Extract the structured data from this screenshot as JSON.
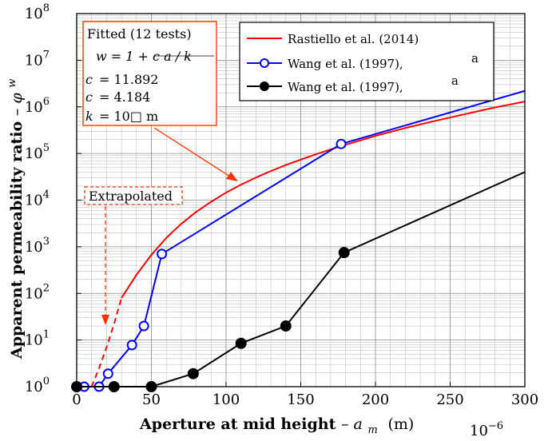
{
  "chart_data": {
    "type": "line",
    "xlabel": "Aperture at mid height",
    "xlabel_symbol": "a",
    "xlabel_sub": "m",
    "xlabel_unit": "(m)",
    "xlabel_scale": "10",
    "xlabel_scale_exp": "−6",
    "ylabel": "Apparent permeability ratio",
    "ylabel_symbol": "φ",
    "ylabel_sup": "w",
    "xlim": [
      0,
      300
    ],
    "ylim_log10": [
      0,
      8
    ],
    "y_scale": "log",
    "grid": "both",
    "x_ticks": [
      0,
      50,
      100,
      150,
      200,
      250,
      300
    ],
    "y_tick_base": "10",
    "y_tick_exponents": [
      "0",
      "1",
      "2",
      "3",
      "4",
      "5",
      "6",
      "7",
      "8"
    ],
    "legend_position": "top-right",
    "series": [
      {
        "name": "Rastiello et al. (2014)",
        "color": "#ff0000",
        "marker": "none",
        "style": "solid",
        "x": [
          30,
          40,
          50,
          60,
          70,
          80,
          90,
          100,
          110,
          120,
          130,
          140,
          150,
          160,
          170,
          180,
          190,
          200,
          220,
          240,
          260,
          280,
          300
        ],
        "y": [
          80,
          250,
          670,
          1550,
          3100,
          5600,
          9200,
          14500,
          21500,
          30500,
          42000,
          56500,
          74000,
          96000,
          122000,
          154000,
          192000,
          238000,
          352000,
          500000,
          700000,
          970000,
          1300000
        ]
      },
      {
        "name": "Extrapolated",
        "color": "#ff0000",
        "marker": "none",
        "style": "dashed",
        "x": [
          10,
          15,
          20,
          25,
          30
        ],
        "y": [
          1,
          2.5,
          7,
          22,
          80
        ]
      },
      {
        "name": "Wang et al. (1997),",
        "name_suffix": "a",
        "color": "#0000ff",
        "marker": "open-circle",
        "style": "solid",
        "x": [
          5,
          15,
          21,
          37,
          45,
          57,
          177,
          300
        ],
        "y": [
          1,
          1,
          1.9,
          7.8,
          20,
          700,
          160000,
          2200000
        ]
      },
      {
        "name": "Wang et al. (1997),",
        "name_suffix": "a",
        "color": "#000000",
        "marker": "filled-circle",
        "style": "solid",
        "x": [
          0,
          25,
          50,
          78,
          110,
          140,
          179,
          300
        ],
        "y": [
          1,
          1,
          1,
          1.9,
          8.5,
          20,
          750,
          40000
        ]
      }
    ],
    "annotations": {
      "fitted_box": {
        "title": "Fitted (12 tests)",
        "line1": "w = 1 + c a / k",
        "line2_sym": "c",
        "line2_val": "= 11.892",
        "line3_sym": "c",
        "line3_val": "= 4.184",
        "line4_sym": "k",
        "line4_val": "= 10□  m",
        "color": "#ff3300"
      },
      "extrapolated_label": "Extrapolated",
      "extrapolated_color": "#ff3300"
    }
  }
}
